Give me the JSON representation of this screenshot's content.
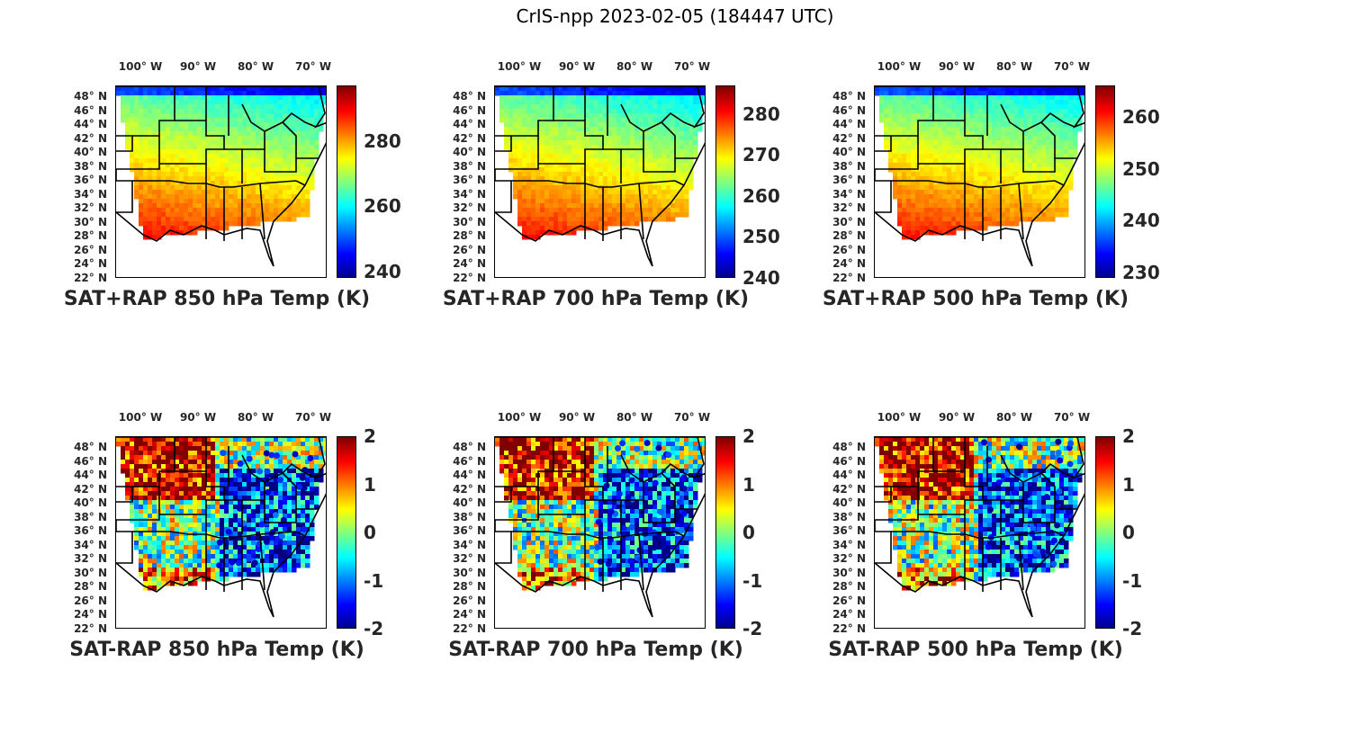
{
  "figure_title": "CrIS-npp 2023-02-05 (184447 UTC)",
  "lon_ticks": [
    "100° W",
    "90° W",
    "80° W",
    "70° W"
  ],
  "lat_ticks": [
    "48° N",
    "46° N",
    "44° N",
    "42° N",
    "40° N",
    "38° N",
    "36° N",
    "34° N",
    "32° N",
    "30° N",
    "28° N",
    "26° N",
    "24° N",
    "22° N"
  ],
  "colormap": "jet",
  "panels": [
    {
      "title": "SAT+RAP 850 hPa Temp (K)",
      "kind": "temp",
      "clim": [
        238,
        297
      ],
      "cb_ticks": [
        {
          "label": "280",
          "value": 280
        },
        {
          "label": "260",
          "value": 260
        },
        {
          "label": "240",
          "value": 240
        }
      ]
    },
    {
      "title": "SAT+RAP 700 hPa Temp (K)",
      "kind": "temp",
      "clim": [
        240,
        287
      ],
      "cb_ticks": [
        {
          "label": "280",
          "value": 280
        },
        {
          "label": "270",
          "value": 270
        },
        {
          "label": "260",
          "value": 260
        },
        {
          "label": "250",
          "value": 250
        },
        {
          "label": "240",
          "value": 240
        }
      ]
    },
    {
      "title": "SAT+RAP 500 hPa Temp (K)",
      "kind": "temp",
      "clim": [
        229,
        266
      ],
      "cb_ticks": [
        {
          "label": "260",
          "value": 260
        },
        {
          "label": "250",
          "value": 250
        },
        {
          "label": "240",
          "value": 240
        },
        {
          "label": "230",
          "value": 230
        }
      ]
    },
    {
      "title": "SAT-RAP 850 hPa Temp (K)",
      "kind": "diff",
      "clim": [
        -2,
        2
      ],
      "cb_ticks": [
        {
          "label": "2",
          "value": 2
        },
        {
          "label": "1",
          "value": 1
        },
        {
          "label": "0",
          "value": 0
        },
        {
          "label": "-1",
          "value": -1
        },
        {
          "label": "-2",
          "value": -2
        }
      ]
    },
    {
      "title": "SAT-RAP 700 hPa Temp (K)",
      "kind": "diff",
      "clim": [
        -2,
        2
      ],
      "cb_ticks": [
        {
          "label": "2",
          "value": 2
        },
        {
          "label": "1",
          "value": 1
        },
        {
          "label": "0",
          "value": 0
        },
        {
          "label": "-1",
          "value": -1
        },
        {
          "label": "-2",
          "value": -2
        }
      ]
    },
    {
      "title": "SAT-RAP 500 hPa Temp (K)",
      "kind": "diff",
      "clim": [
        -2,
        2
      ],
      "cb_ticks": [
        {
          "label": "2",
          "value": 2
        },
        {
          "label": "1",
          "value": 1
        },
        {
          "label": "0",
          "value": 0
        },
        {
          "label": "-1",
          "value": -1
        },
        {
          "label": "-2",
          "value": -2
        }
      ]
    }
  ]
}
